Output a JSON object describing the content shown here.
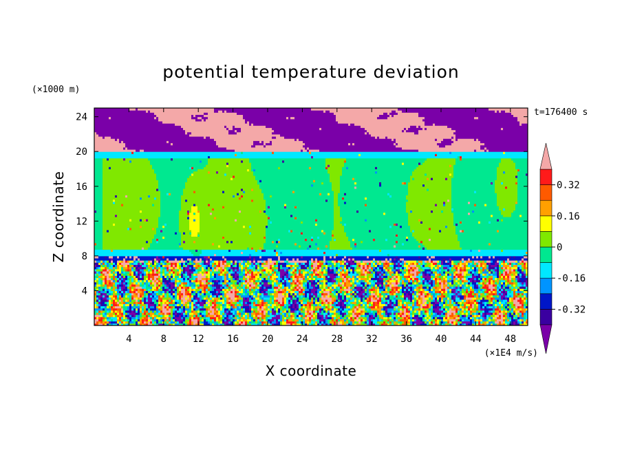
{
  "chart_data": {
    "type": "heatmap",
    "title": "potential temperature deviation",
    "xlabel": "X coordinate",
    "ylabel": "Z coordinate",
    "x_units": "(×1E4 m/s)",
    "y_units": "(×1000 m)",
    "time_label": "t=176400 s",
    "xlim": [
      0,
      50
    ],
    "ylim": [
      0,
      25
    ],
    "x_ticks": [
      4,
      8,
      12,
      16,
      20,
      24,
      28,
      32,
      36,
      40,
      44,
      48
    ],
    "y_ticks": [
      4,
      8,
      12,
      16,
      20,
      24
    ],
    "colorbar": {
      "levels": [
        -0.4,
        -0.32,
        -0.24,
        -0.16,
        -0.08,
        0,
        0.08,
        0.16,
        0.24,
        0.32,
        0.4
      ],
      "labels": [
        "0.32",
        "0.16",
        "0",
        "-0.16",
        "-0.32"
      ],
      "label_values": [
        0.32,
        0.16,
        0,
        -0.16,
        -0.32
      ],
      "colors": [
        "#7a00a8",
        "#3a00a0",
        "#0016c8",
        "#0094ff",
        "#00e8ff",
        "#00e890",
        "#80e800",
        "#ffff00",
        "#ffa000",
        "#ff5a00",
        "#ff1a1a",
        "#f4a8a8"
      ],
      "extend": "both"
    },
    "regions": [
      {
        "name": "upper layer",
        "z_range": [
          20,
          25
        ],
        "values": "mixed -0.4 and above 0.4"
      },
      {
        "name": "middle layer",
        "z_range": [
          8,
          20
        ],
        "values": "about -0.08 to 0.08, locally up to 0.32"
      },
      {
        "name": "lower layer",
        "z_range": [
          0,
          8
        ],
        "values": "strong fluctuations -0.4 to 0.4"
      }
    ]
  }
}
